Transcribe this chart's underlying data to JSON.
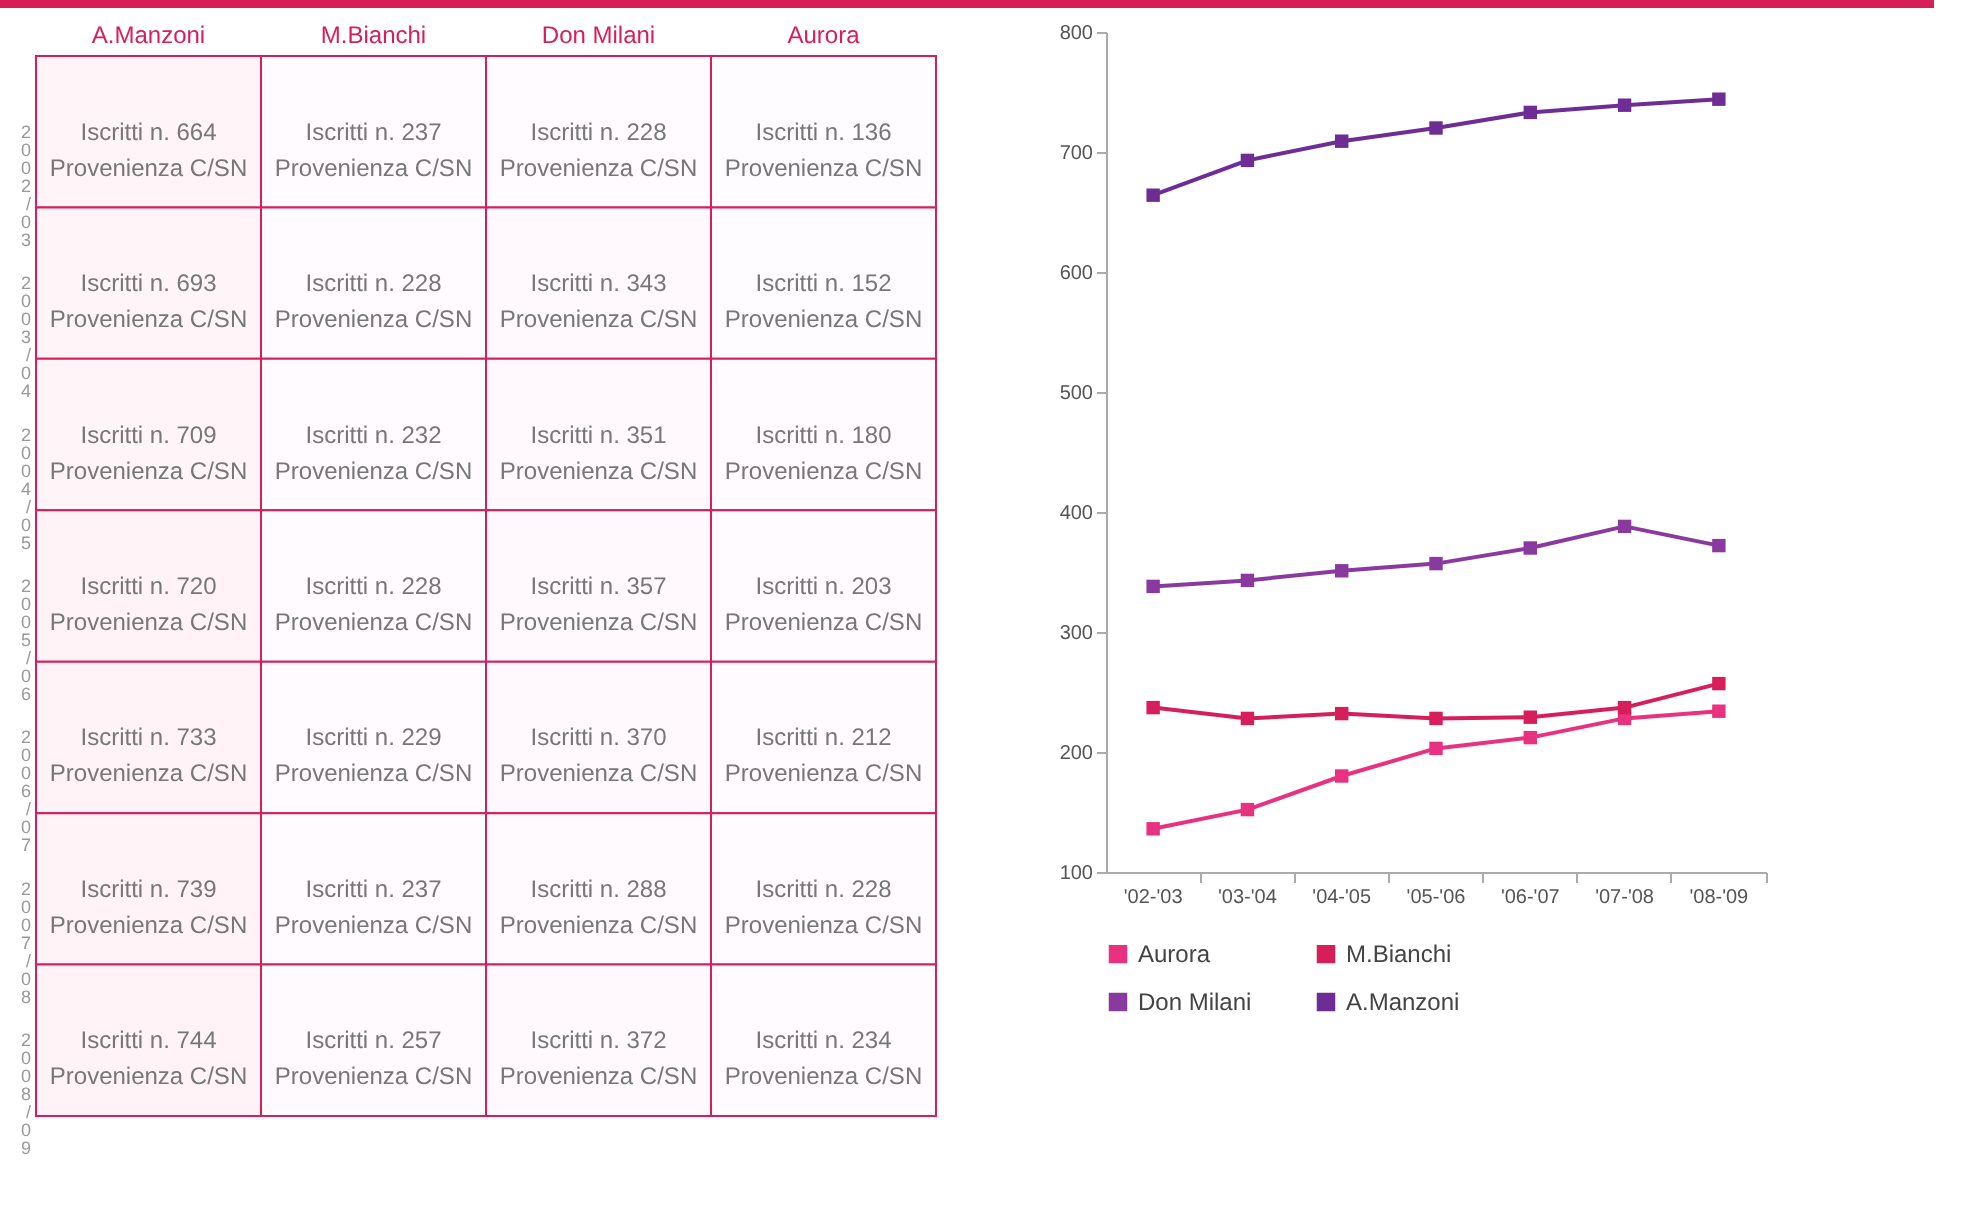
{
  "chart_data": [
    {
      "type": "heatmap",
      "categories": [
        "A.Manzoni",
        "M.Bianchi",
        "Don Milani",
        "Aurora"
      ],
      "y_categories": [
        "2002/03",
        "2003/04",
        "2004/05",
        "2005/06",
        "2006/07",
        "2007/08",
        "2008/09"
      ],
      "cells": [
        [
          664,
          237,
          228,
          136
        ],
        [
          693,
          228,
          343,
          152
        ],
        [
          709,
          232,
          351,
          180
        ],
        [
          720,
          228,
          357,
          203
        ],
        [
          733,
          229,
          370,
          212
        ],
        [
          739,
          237,
          288,
          228
        ],
        [
          744,
          257,
          372,
          234
        ]
      ],
      "cell_labels": [
        [
          "Iscritti n. 664\nProvenienza C/SN",
          "Iscritti n. 237\nProvenienza C/SN",
          "Iscritti n. 228\nProvenienza C/SN",
          "Iscritti n. 136\nProvenienza C/SN"
        ],
        [
          "Iscritti n. 693\nProvenienza C/SN",
          "Iscritti n. 228\nProvenienza C/SN",
          "Iscritti n. 343\nProvenienza C/SN",
          "Iscritti n. 152\nProvenienza C/SN"
        ],
        [
          "Iscritti n. 709\nProvenienza C/SN",
          "Iscritti n. 232\nProvenienza C/SN",
          "Iscritti n. 351\nProvenienza C/SN",
          "Iscritti n. 180\nProvenienza C/SN"
        ],
        [
          "Iscritti n. 720\nProvenienza C/SN",
          "Iscritti n. 228\nProvenienza C/SN",
          "Iscritti n. 357\nProvenienza C/SN",
          "Iscritti n. 203\nProvenienza C/SN"
        ],
        [
          "Iscritti n. 733\nProvenienza C/SN",
          "Iscritti n. 229\nProvenienza C/SN",
          "Iscritti n. 370\nProvenienza C/SN",
          "Iscritti n. 212\nProvenienza C/SN"
        ],
        [
          "Iscritti n. 739\nProvenienza C/SN",
          "Iscritti n. 237\nProvenienza C/SN",
          "Iscritti n. 288\nProvenienza C/SN",
          "Iscritti n. 228\nProvenienza C/SN"
        ],
        [
          "Iscritti n. 744\nProvenienza C/SN",
          "Iscritti n. 257\nProvenienza C/SN",
          "Iscritti n. 372\nProvenienza C/SN",
          "Iscritti n. 234\nProvenienza C/SN"
        ]
      ]
    },
    {
      "type": "line",
      "categories": [
        "'02-'03",
        "'03-'04",
        "'04-'05",
        "'05-'06",
        "'06-'07",
        "'07-'08",
        "'08-'09"
      ],
      "series": [
        {
          "name": "Aurora",
          "color": "#e8317f",
          "values": [
            136,
            152,
            180,
            203,
            212,
            228,
            234
          ]
        },
        {
          "name": "M.Bianchi",
          "color": "#d61f5a",
          "values": [
            237,
            228,
            232,
            228,
            229,
            237,
            257
          ]
        },
        {
          "name": "Don Milani",
          "color": "#8a3a9e",
          "values": [
            338,
            343,
            351,
            357,
            370,
            388,
            372
          ]
        },
        {
          "name": "A.Manzoni",
          "color": "#6e2d94",
          "values": [
            664,
            693,
            709,
            720,
            733,
            739,
            744
          ]
        }
      ],
      "ylim": [
        100,
        800
      ],
      "yticks": [
        100,
        200,
        300,
        400,
        500,
        600,
        700,
        800
      ],
      "marker": "square",
      "legend": "bottom"
    }
  ]
}
